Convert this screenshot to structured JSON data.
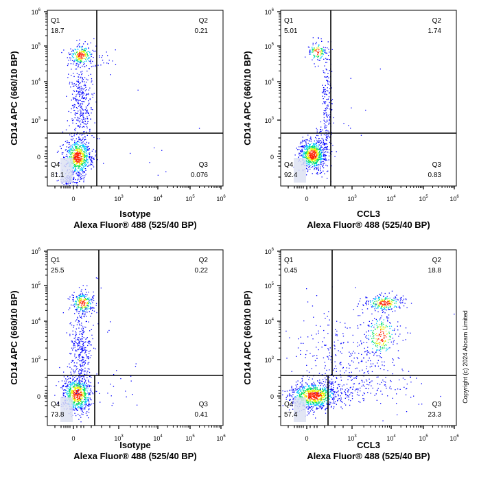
{
  "copyright": "Copyright (c) 2024 Abcam Limited",
  "chart_data": [
    {
      "type": "scatter",
      "subtype": "flow-cytometry-density-dot-plot",
      "xlabel_line1": "Isotype",
      "xlabel_line2": "Alexa Fluor® 488  (525/40 BP)",
      "ylabel": "CD14 APC (660/10 BP)",
      "xscale": "biexponential",
      "yscale": "biexponential",
      "quadrants": [
        {
          "name": "Q1",
          "value": "18.7"
        },
        {
          "name": "Q2",
          "value": "0.21"
        },
        {
          "name": "Q3",
          "value": "0.076"
        },
        {
          "name": "Q4",
          "value": "81.1"
        }
      ]
    },
    {
      "type": "scatter",
      "subtype": "flow-cytometry-density-dot-plot",
      "xlabel_line1": "CCL3",
      "xlabel_line2": "Alexa Fluor® 488  (525/40 BP)",
      "ylabel": "CD14 APC (660/10 BP)",
      "xscale": "biexponential",
      "yscale": "biexponential",
      "quadrants": [
        {
          "name": "Q1",
          "value": "5.01"
        },
        {
          "name": "Q2",
          "value": "1.74"
        },
        {
          "name": "Q3",
          "value": "0.83"
        },
        {
          "name": "Q4",
          "value": "92.4"
        }
      ]
    },
    {
      "type": "scatter",
      "subtype": "flow-cytometry-density-dot-plot",
      "xlabel_line1": "Isotype",
      "xlabel_line2": "Alexa Fluor® 488  (525/40 BP)",
      "ylabel": "CD14 APC (660/10 BP)",
      "xscale": "biexponential",
      "yscale": "biexponential",
      "quadrants": [
        {
          "name": "Q1",
          "value": "25.5"
        },
        {
          "name": "Q2",
          "value": "0.22"
        },
        {
          "name": "Q3",
          "value": "0.41"
        },
        {
          "name": "Q4",
          "value": "73.8"
        }
      ]
    },
    {
      "type": "scatter",
      "subtype": "flow-cytometry-density-dot-plot",
      "xlabel_line1": "CCL3",
      "xlabel_line2": "Alexa Fluor® 488  (525/40 BP)",
      "ylabel": "CD14 APC (660/10 BP)",
      "xscale": "biexponential",
      "yscale": "biexponential",
      "quadrants": [
        {
          "name": "Q1",
          "value": "0.45"
        },
        {
          "name": "Q2",
          "value": "18.8"
        },
        {
          "name": "Q3",
          "value": "23.3"
        },
        {
          "name": "Q4",
          "value": "57.4"
        }
      ]
    }
  ],
  "axis_ticks": {
    "x": [
      {
        "base": "0",
        "exp": ""
      },
      {
        "base": "10",
        "exp": "3"
      },
      {
        "base": "10",
        "exp": "4"
      },
      {
        "base": "10",
        "exp": "5"
      },
      {
        "base": "10",
        "exp": "6"
      }
    ],
    "y": [
      {
        "base": "0",
        "exp": ""
      },
      {
        "base": "10",
        "exp": "3"
      },
      {
        "base": "10",
        "exp": "4"
      },
      {
        "base": "10",
        "exp": "5"
      },
      {
        "base": "10",
        "exp": "6"
      }
    ]
  },
  "density_colors": [
    "#0000ff",
    "#00c8ff",
    "#00e060",
    "#f0f000",
    "#ff2000"
  ]
}
